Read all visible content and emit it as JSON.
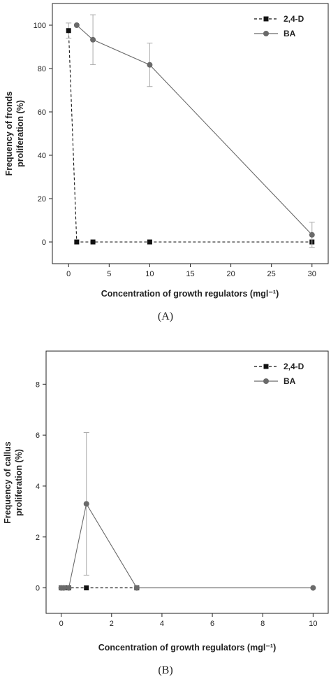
{
  "panels": [
    {
      "panel_label": "(A)",
      "legend_position": "top-right",
      "chart_data": {
        "type": "line",
        "xlabel": "Concentration of growth regulators (mgl⁻¹)",
        "ylabel_lines": [
          "Frequency of fronds",
          "proliferation (%)"
        ],
        "xlim": [
          -2,
          32
        ],
        "ylim": [
          -10,
          110
        ],
        "xticks": [
          0,
          5,
          10,
          15,
          20,
          25,
          30
        ],
        "yticks": [
          0,
          20,
          40,
          60,
          80,
          100
        ],
        "grid": false,
        "series": [
          {
            "name": "2,4-D",
            "color": "#111111",
            "line_style": "dashed",
            "marker": "square",
            "x": [
              0,
              1,
              3,
              10,
              30
            ],
            "y": [
              97.5,
              0,
              0,
              0,
              0
            ],
            "err": [
              3.5,
              0,
              0,
              0,
              0
            ]
          },
          {
            "name": "BA",
            "color": "#6a6a6a",
            "line_style": "solid",
            "marker": "circle",
            "x": [
              1,
              3,
              10,
              30
            ],
            "y": [
              100,
              93.3,
              81.7,
              3.3
            ],
            "err": [
              0,
              11.5,
              10,
              5.8
            ]
          }
        ]
      }
    },
    {
      "panel_label": "(B)",
      "legend_position": "top-right",
      "chart_data": {
        "type": "line",
        "xlabel": "Concentration of growth regulators (mgl⁻¹)",
        "ylabel_lines": [
          "Frequency of callus",
          "proliferation (%)"
        ],
        "xlim": [
          -0.6,
          10.6
        ],
        "ylim": [
          -1,
          9.3
        ],
        "xticks": [
          0,
          2,
          4,
          6,
          8,
          10
        ],
        "yticks": [
          0,
          2,
          4,
          6,
          8
        ],
        "grid": false,
        "series": [
          {
            "name": "2,4-D",
            "color": "#111111",
            "line_style": "dashed",
            "marker": "square",
            "x": [
              0,
              0.1,
              0.3,
              1,
              3
            ],
            "y": [
              0,
              0,
              0,
              0,
              0
            ],
            "err": [
              0,
              0,
              0,
              0,
              0
            ]
          },
          {
            "name": "BA",
            "color": "#6a6a6a",
            "line_style": "solid",
            "marker": "circle",
            "x": [
              0,
              0.1,
              0.3,
              1,
              3,
              10
            ],
            "y": [
              0,
              0,
              0,
              3.3,
              0,
              0
            ],
            "err": [
              0,
              0,
              0,
              2.8,
              0,
              0
            ]
          }
        ]
      }
    }
  ]
}
